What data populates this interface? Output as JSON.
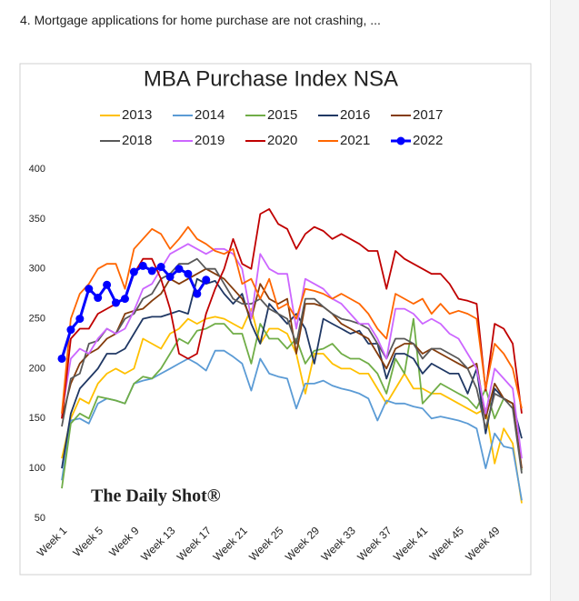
{
  "caption": "4. Mortgage applications for home purchase are not crashing, ...",
  "chart_data": {
    "type": "line",
    "title": "MBA Purchase Index NSA",
    "annotation": "The Daily Shot®",
    "categories": [
      "Week 1",
      null,
      null,
      null,
      "Week 5",
      null,
      null,
      null,
      "Week 9",
      null,
      null,
      null,
      "Week 13",
      null,
      null,
      null,
      "Week 17",
      null,
      null,
      null,
      "Week 21",
      null,
      null,
      null,
      "Week 25",
      null,
      null,
      null,
      "Week 29",
      null,
      null,
      null,
      "Week 33",
      null,
      null,
      null,
      "Week 37",
      null,
      null,
      null,
      "Week 41",
      null,
      null,
      null,
      "Week 45",
      null,
      null,
      null,
      "Week 49",
      null,
      null,
      null
    ],
    "ylim": [
      50,
      400
    ],
    "yticks": [
      50,
      100,
      150,
      200,
      250,
      300,
      350,
      400
    ],
    "grid": false,
    "series": [
      {
        "name": "2013",
        "color": "#ffc000",
        "values": [
          110,
          150,
          170,
          165,
          185,
          195,
          200,
          195,
          200,
          230,
          225,
          220,
          235,
          240,
          250,
          245,
          250,
          252,
          250,
          245,
          240,
          260,
          225,
          240,
          240,
          235,
          215,
          175,
          215,
          215,
          205,
          200,
          200,
          195,
          195,
          180,
          165,
          180,
          195,
          180,
          180,
          175,
          175,
          170,
          165,
          160,
          155,
          160,
          105,
          140,
          125,
          65
        ]
      },
      {
        "name": "2014",
        "color": "#5b9bd5",
        "values": [
          88,
          148,
          150,
          145,
          165,
          170,
          168,
          165,
          185,
          188,
          190,
          195,
          200,
          205,
          210,
          205,
          198,
          218,
          218,
          212,
          205,
          178,
          210,
          195,
          192,
          190,
          160,
          185,
          185,
          188,
          183,
          180,
          178,
          175,
          170,
          148,
          168,
          165,
          165,
          162,
          160,
          150,
          152,
          150,
          148,
          145,
          140,
          100,
          135,
          122,
          120,
          68
        ]
      },
      {
        "name": "2015",
        "color": "#70ad47",
        "values": [
          80,
          145,
          155,
          150,
          172,
          170,
          168,
          165,
          185,
          192,
          190,
          200,
          215,
          230,
          225,
          238,
          240,
          245,
          245,
          235,
          235,
          205,
          245,
          230,
          230,
          220,
          230,
          205,
          218,
          220,
          225,
          215,
          210,
          210,
          205,
          195,
          175,
          210,
          195,
          250,
          165,
          175,
          185,
          180,
          175,
          170,
          160,
          180,
          150,
          170,
          165,
          98
        ]
      },
      {
        "name": "2016",
        "color": "#203864",
        "values": [
          100,
          155,
          180,
          190,
          200,
          215,
          215,
          220,
          235,
          250,
          252,
          252,
          255,
          258,
          255,
          290,
          285,
          288,
          275,
          265,
          275,
          245,
          225,
          265,
          255,
          245,
          255,
          240,
          205,
          250,
          245,
          240,
          235,
          238,
          225,
          225,
          190,
          215,
          215,
          210,
          195,
          205,
          200,
          195,
          195,
          175,
          200,
          135,
          180,
          170,
          165,
          130
        ]
      },
      {
        "name": "2017",
        "color": "#843c0c",
        "values": [
          150,
          185,
          205,
          215,
          220,
          230,
          235,
          255,
          258,
          260,
          268,
          275,
          290,
          285,
          290,
          295,
          300,
          295,
          290,
          280,
          270,
          250,
          285,
          270,
          265,
          270,
          215,
          265,
          265,
          262,
          255,
          245,
          240,
          235,
          230,
          215,
          200,
          220,
          225,
          225,
          215,
          220,
          215,
          210,
          205,
          200,
          205,
          150,
          185,
          170,
          165,
          100
        ]
      },
      {
        "name": "2018",
        "color": "#595959",
        "values": [
          142,
          190,
          195,
          225,
          228,
          240,
          235,
          250,
          255,
          270,
          275,
          290,
          295,
          305,
          305,
          310,
          300,
          300,
          285,
          270,
          265,
          265,
          270,
          260,
          255,
          250,
          225,
          270,
          270,
          262,
          255,
          250,
          248,
          245,
          240,
          225,
          210,
          230,
          230,
          225,
          210,
          220,
          220,
          215,
          210,
          200,
          180,
          140,
          175,
          170,
          160,
          95
        ]
      },
      {
        "name": "2019",
        "color": "#cc66ff",
        "values": [
          155,
          210,
          220,
          215,
          230,
          240,
          235,
          240,
          258,
          280,
          285,
          300,
          315,
          320,
          325,
          320,
          315,
          320,
          320,
          315,
          300,
          250,
          315,
          300,
          295,
          295,
          240,
          290,
          285,
          280,
          270,
          265,
          255,
          245,
          245,
          230,
          210,
          260,
          260,
          255,
          245,
          250,
          245,
          235,
          230,
          215,
          200,
          155,
          200,
          190,
          180,
          110
        ]
      },
      {
        "name": "2020",
        "color": "#c00000",
        "values": [
          150,
          230,
          240,
          240,
          255,
          260,
          265,
          270,
          295,
          310,
          310,
          290,
          260,
          215,
          210,
          215,
          255,
          280,
          300,
          330,
          305,
          300,
          355,
          360,
          345,
          340,
          320,
          335,
          342,
          338,
          330,
          335,
          330,
          325,
          318,
          318,
          280,
          318,
          310,
          305,
          300,
          295,
          295,
          285,
          270,
          268,
          265,
          178,
          245,
          240,
          225,
          155
        ]
      },
      {
        "name": "2021",
        "color": "#ff6600",
        "values": [
          155,
          250,
          275,
          285,
          300,
          305,
          305,
          280,
          320,
          330,
          340,
          335,
          320,
          330,
          342,
          330,
          325,
          318,
          315,
          320,
          285,
          290,
          270,
          290,
          260,
          265,
          250,
          280,
          278,
          275,
          270,
          275,
          270,
          265,
          255,
          240,
          230,
          275,
          270,
          265,
          270,
          255,
          265,
          255,
          258,
          255,
          250,
          180,
          225,
          215,
          200,
          160
        ]
      },
      {
        "name": "2022",
        "color": "#0000ff",
        "markers": true,
        "values": [
          210,
          239,
          250,
          280,
          271,
          284,
          266,
          270,
          297,
          303,
          298,
          302,
          292,
          300,
          295,
          275,
          289,
          null,
          null,
          null,
          null,
          null,
          null,
          null,
          null,
          null,
          null,
          null,
          null,
          null,
          null,
          null,
          null,
          null,
          null,
          null,
          null,
          null,
          null,
          null,
          null,
          null,
          null,
          null,
          null,
          null,
          null,
          null,
          null,
          null,
          null,
          null
        ]
      }
    ]
  }
}
